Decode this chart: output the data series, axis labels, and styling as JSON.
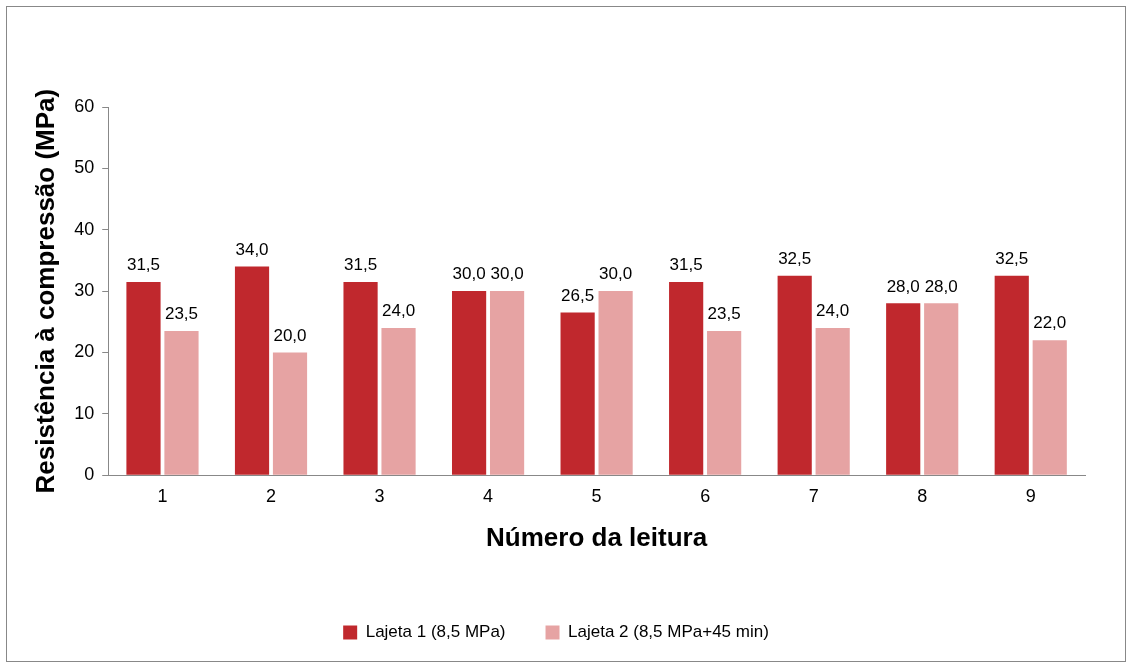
{
  "chart_data": {
    "type": "bar",
    "xlabel": "Número da leitura",
    "ylabel": "Resistência à compressão (MPa)",
    "categories": [
      "1",
      "2",
      "3",
      "4",
      "5",
      "6",
      "7",
      "8",
      "9"
    ],
    "series": [
      {
        "name": "Lajeta 1 (8,5 MPa)",
        "color": "#c0282d",
        "values": [
          31.5,
          34.0,
          31.5,
          30.0,
          26.5,
          31.5,
          32.5,
          28.0,
          32.5
        ],
        "value_labels": [
          "31,5",
          "34,0",
          "31,5",
          "30,0",
          "26,5",
          "31,5",
          "32,5",
          "28,0",
          "32,5"
        ]
      },
      {
        "name": "Lajeta 2 (8,5 MPa+45 min)",
        "color": "#e6a3a3",
        "values": [
          23.5,
          20.0,
          24.0,
          30.0,
          30.0,
          23.5,
          24.0,
          28.0,
          22.0
        ],
        "value_labels": [
          "23,5",
          "20,0",
          "24,0",
          "30,0",
          "30,0",
          "23,5",
          "24,0",
          "28,0",
          "22,0"
        ]
      }
    ],
    "ylim": [
      0,
      60
    ],
    "yticks": [
      0,
      10,
      20,
      30,
      40,
      50,
      60
    ],
    "grid": false,
    "legend": "bottom"
  }
}
